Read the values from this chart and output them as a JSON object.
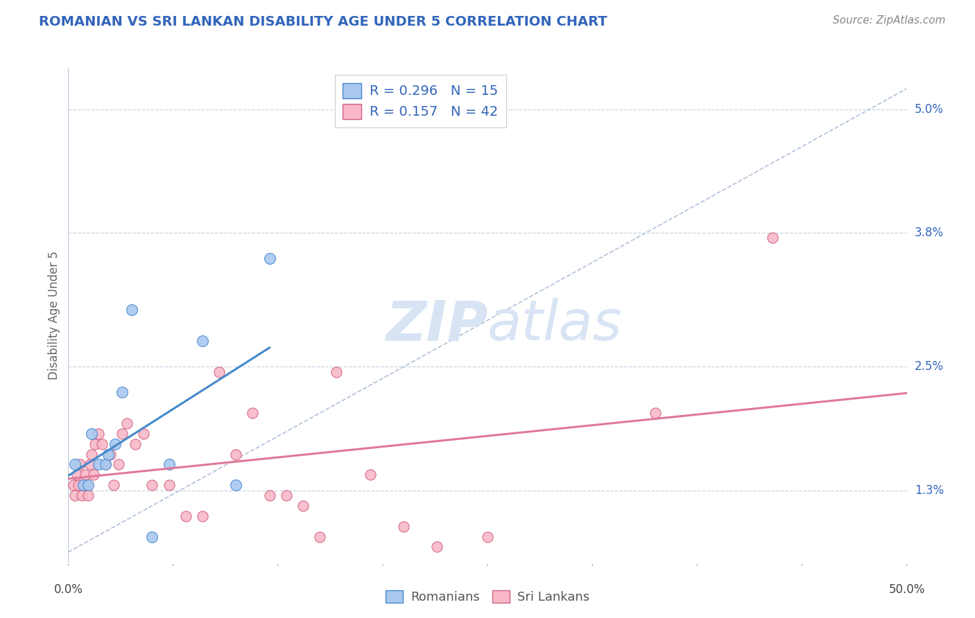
{
  "title": "ROMANIAN VS SRI LANKAN DISABILITY AGE UNDER 5 CORRELATION CHART",
  "source": "Source: ZipAtlas.com",
  "ylabel": "Disability Age Under 5",
  "ytick_labels": [
    "1.3%",
    "2.5%",
    "3.8%",
    "5.0%"
  ],
  "ytick_values": [
    1.3,
    2.5,
    3.8,
    5.0
  ],
  "xtick_labels": [
    "0.0%",
    "50.0%"
  ],
  "xlim": [
    0.0,
    50.0
  ],
  "ylim": [
    0.6,
    5.4
  ],
  "r_romanian": 0.296,
  "n_romanian": 15,
  "r_srilankan": 0.157,
  "n_srilankan": 42,
  "color_romanian_fill": "#A8C8F0",
  "color_romanian_edge": "#4488CC",
  "color_srilankan_fill": "#F8B8C8",
  "color_srilankan_edge": "#D06080",
  "color_line_romanian": "#4488CC",
  "color_line_srilankan": "#E07898",
  "color_diagonal": "#B0C0D8",
  "background_color": "#FFFFFF",
  "grid_color": "#C8D4E4",
  "title_color": "#3366BB",
  "legend_text_color": "#3366BB",
  "watermark_color": "#D8E4F4",
  "romanian_x": [
    0.4,
    0.9,
    1.2,
    1.4,
    1.8,
    2.2,
    2.4,
    2.8,
    3.2,
    3.8,
    5.0,
    6.0,
    8.0,
    10.0,
    12.0
  ],
  "romanian_y": [
    1.55,
    1.35,
    1.35,
    1.85,
    1.55,
    1.55,
    1.65,
    1.75,
    2.25,
    3.05,
    0.85,
    1.55,
    2.75,
    1.35,
    3.55
  ],
  "srilankan_x": [
    0.3,
    0.4,
    0.5,
    0.6,
    0.7,
    0.8,
    0.9,
    1.0,
    1.1,
    1.2,
    1.3,
    1.4,
    1.5,
    1.6,
    1.8,
    2.0,
    2.2,
    2.5,
    2.7,
    3.0,
    3.2,
    3.5,
    4.0,
    4.5,
    5.0,
    6.0,
    7.0,
    8.0,
    9.0,
    10.0,
    11.0,
    12.0,
    13.0,
    14.0,
    15.0,
    16.0,
    18.0,
    20.0,
    22.0,
    25.0,
    35.0,
    42.0
  ],
  "srilankan_y": [
    1.35,
    1.25,
    1.45,
    1.35,
    1.55,
    1.25,
    1.35,
    1.45,
    1.35,
    1.25,
    1.55,
    1.65,
    1.45,
    1.75,
    1.85,
    1.75,
    1.55,
    1.65,
    1.35,
    1.55,
    1.85,
    1.95,
    1.75,
    1.85,
    1.35,
    1.35,
    1.05,
    1.05,
    2.45,
    1.65,
    2.05,
    1.25,
    1.25,
    1.15,
    0.85,
    2.45,
    1.45,
    0.95,
    0.75,
    0.85,
    2.05,
    3.75
  ]
}
